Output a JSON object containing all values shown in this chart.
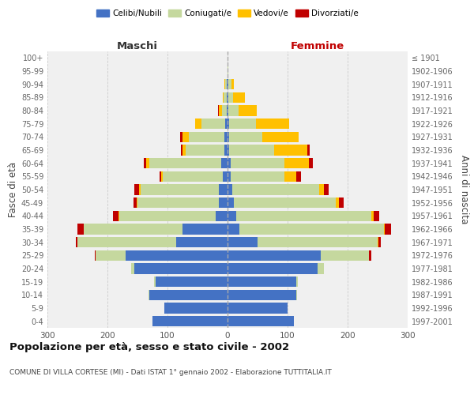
{
  "age_groups": [
    "0-4",
    "5-9",
    "10-14",
    "15-19",
    "20-24",
    "25-29",
    "30-34",
    "35-39",
    "40-44",
    "45-49",
    "50-54",
    "55-59",
    "60-64",
    "65-69",
    "70-74",
    "75-79",
    "80-84",
    "85-89",
    "90-94",
    "95-99",
    "100+"
  ],
  "birth_years": [
    "1997-2001",
    "1992-1996",
    "1987-1991",
    "1982-1986",
    "1977-1981",
    "1972-1976",
    "1967-1971",
    "1962-1966",
    "1957-1961",
    "1952-1956",
    "1947-1951",
    "1942-1946",
    "1937-1941",
    "1932-1936",
    "1927-1931",
    "1922-1926",
    "1917-1921",
    "1912-1916",
    "1907-1911",
    "1902-1906",
    "≤ 1901"
  ],
  "male": {
    "celibi": [
      125,
      105,
      130,
      120,
      155,
      170,
      85,
      75,
      20,
      15,
      15,
      8,
      10,
      5,
      5,
      4,
      1,
      1,
      1,
      0,
      0
    ],
    "coniugati": [
      0,
      0,
      1,
      2,
      5,
      50,
      165,
      165,
      160,
      135,
      130,
      100,
      120,
      65,
      60,
      40,
      8,
      5,
      3,
      0,
      0
    ],
    "vedovi": [
      0,
      0,
      0,
      0,
      0,
      0,
      0,
      0,
      1,
      1,
      2,
      2,
      5,
      5,
      10,
      10,
      5,
      2,
      1,
      0,
      0
    ],
    "divorziati": [
      0,
      0,
      0,
      0,
      0,
      1,
      2,
      10,
      10,
      5,
      8,
      3,
      5,
      2,
      4,
      0,
      2,
      0,
      0,
      0,
      0
    ]
  },
  "female": {
    "nubili": [
      110,
      100,
      115,
      115,
      150,
      155,
      50,
      20,
      15,
      10,
      8,
      5,
      5,
      3,
      3,
      3,
      1,
      1,
      1,
      0,
      0
    ],
    "coniugate": [
      0,
      0,
      1,
      2,
      10,
      80,
      200,
      240,
      225,
      170,
      145,
      90,
      90,
      75,
      55,
      45,
      18,
      8,
      5,
      1,
      0
    ],
    "vedove": [
      0,
      0,
      0,
      0,
      0,
      1,
      1,
      2,
      3,
      5,
      8,
      20,
      40,
      55,
      60,
      55,
      30,
      20,
      5,
      0,
      0
    ],
    "divorziate": [
      0,
      0,
      0,
      0,
      0,
      4,
      4,
      10,
      10,
      8,
      8,
      7,
      7,
      4,
      0,
      0,
      0,
      0,
      0,
      0,
      0
    ]
  },
  "color_celibi": "#4472c4",
  "color_coniugati": "#c5d89e",
  "color_vedovi": "#ffc000",
  "color_divorziati": "#c00000",
  "title": "Popolazione per età, sesso e stato civile - 2002",
  "subtitle": "COMUNE DI VILLA CORTESE (MI) - Dati ISTAT 1° gennaio 2002 - Elaborazione TUTTITALIA.IT",
  "ylabel_left": "Fasce di età",
  "ylabel_right": "Anni di nascita",
  "xlabel_maschi": "Maschi",
  "xlabel_femmine": "Femmine",
  "legend_labels": [
    "Celibi/Nubili",
    "Coniugati/e",
    "Vedovi/e",
    "Divorziati/e"
  ],
  "xlim": 300,
  "bg_color": "#ffffff",
  "plot_bg": "#f0f0f0",
  "grid_color": "#cccccc"
}
